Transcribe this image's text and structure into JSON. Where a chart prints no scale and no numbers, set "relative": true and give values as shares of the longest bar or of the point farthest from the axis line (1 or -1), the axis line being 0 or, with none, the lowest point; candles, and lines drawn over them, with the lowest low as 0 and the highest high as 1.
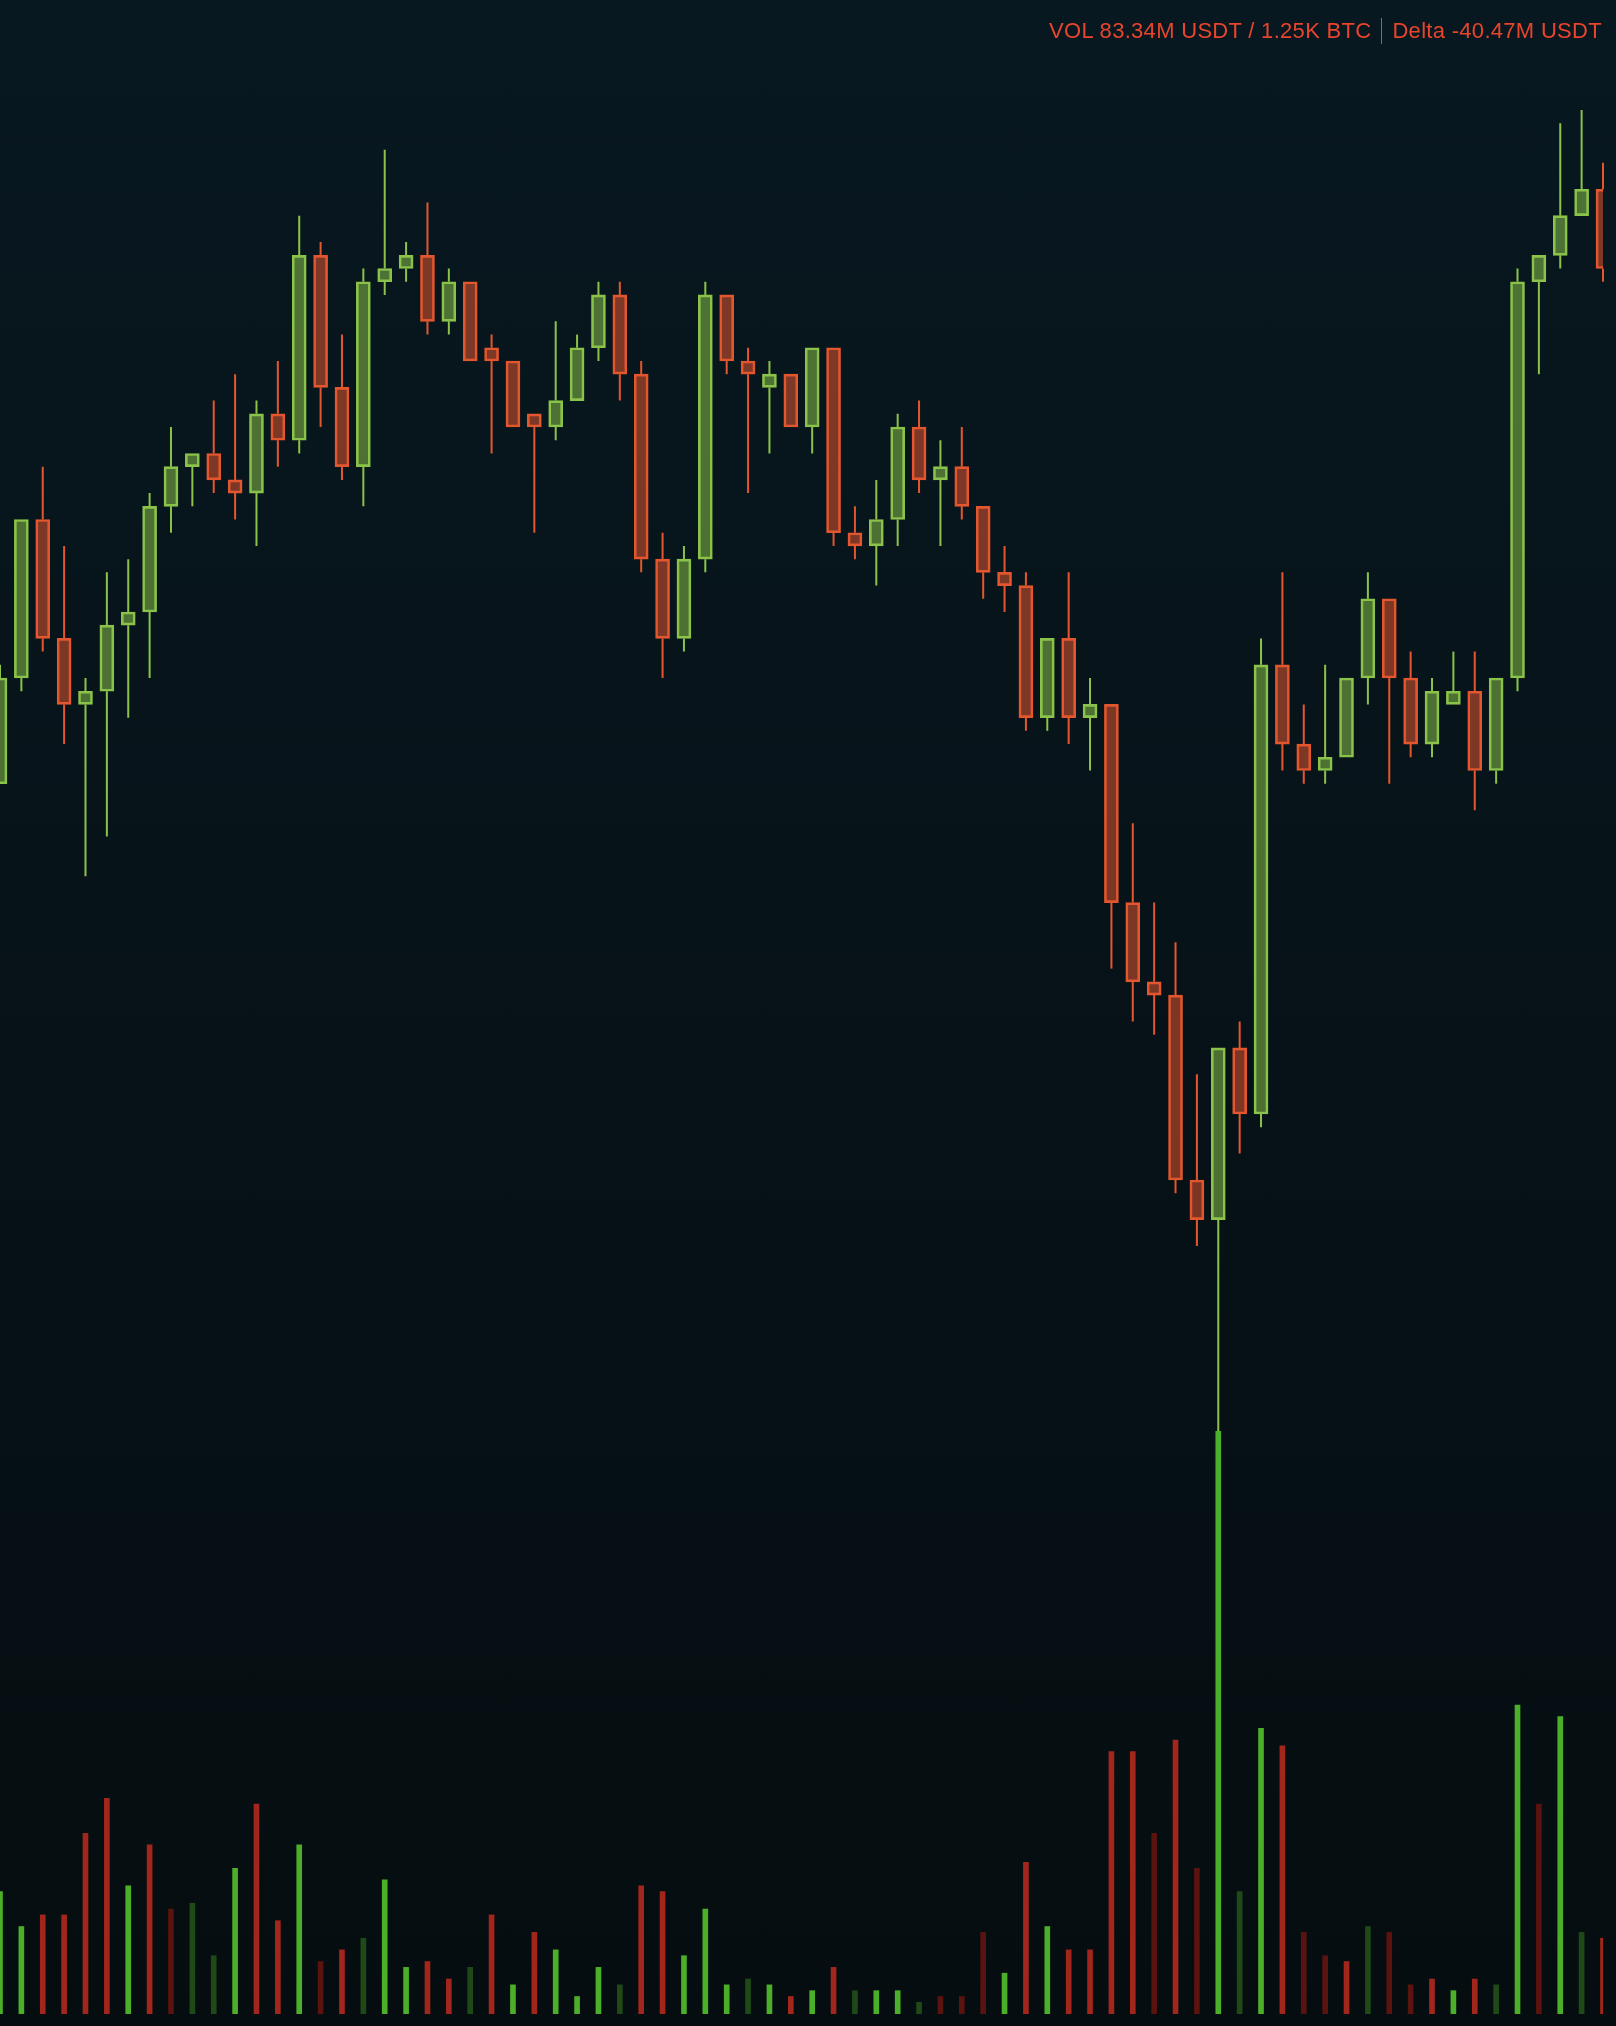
{
  "chart_data": [
    {
      "type": "candlestick",
      "relative": true,
      "tick_labels": false,
      "annotations": [
        "VOL 83.34M USDT / 1.25K BTC",
        "Delta -40.47M USDT"
      ],
      "categories": [
        null,
        null,
        null,
        null,
        null,
        null,
        null,
        null,
        null,
        null,
        null,
        null,
        null,
        null,
        null,
        null,
        null,
        null,
        null,
        null,
        null,
        null,
        null,
        null,
        null,
        null,
        null,
        null,
        null,
        null,
        null,
        null,
        null,
        null,
        null,
        null,
        null,
        null,
        null,
        null,
        null,
        null,
        null,
        null,
        null,
        null,
        null,
        null,
        null,
        null,
        null,
        null,
        null,
        null,
        null,
        null,
        null,
        null,
        null,
        null,
        null,
        null,
        null,
        null,
        null,
        null,
        null,
        null,
        null,
        null,
        null,
        null,
        null,
        null,
        null,
        null
      ],
      "ohlc": [
        [
          0.49,
          0.58,
          0.49,
          0.57
        ],
        [
          0.57,
          0.69,
          0.56,
          0.69
        ],
        [
          0.69,
          0.73,
          0.59,
          0.6
        ],
        [
          0.6,
          0.67,
          0.52,
          0.55
        ],
        [
          0.55,
          0.57,
          0.42,
          0.56
        ],
        [
          0.56,
          0.65,
          0.45,
          0.61
        ],
        [
          0.61,
          0.66,
          0.54,
          0.62
        ],
        [
          0.62,
          0.71,
          0.57,
          0.7
        ],
        [
          0.7,
          0.76,
          0.68,
          0.73
        ],
        [
          0.73,
          0.74,
          0.7,
          0.74
        ],
        [
          0.74,
          0.78,
          0.71,
          0.72
        ],
        [
          0.72,
          0.8,
          0.69,
          0.71
        ],
        [
          0.71,
          0.78,
          0.67,
          0.77
        ],
        [
          0.77,
          0.81,
          0.73,
          0.75
        ],
        [
          0.75,
          0.92,
          0.74,
          0.89
        ],
        [
          0.89,
          0.9,
          0.76,
          0.79
        ],
        [
          0.79,
          0.83,
          0.72,
          0.73
        ],
        [
          0.73,
          0.88,
          0.7,
          0.87
        ],
        [
          0.87,
          0.97,
          0.86,
          0.88
        ],
        [
          0.88,
          0.9,
          0.87,
          0.89
        ],
        [
          0.89,
          0.93,
          0.83,
          0.84
        ],
        [
          0.84,
          0.88,
          0.83,
          0.87
        ],
        [
          0.87,
          0.87,
          0.81,
          0.81
        ],
        [
          0.82,
          0.83,
          0.74,
          0.81
        ],
        [
          0.81,
          0.81,
          0.76,
          0.76
        ],
        [
          0.77,
          0.77,
          0.68,
          0.76
        ],
        [
          0.76,
          0.84,
          0.75,
          0.78
        ],
        [
          0.78,
          0.83,
          0.78,
          0.82
        ],
        [
          0.82,
          0.87,
          0.81,
          0.86
        ],
        [
          0.86,
          0.87,
          0.78,
          0.8
        ],
        [
          0.8,
          0.81,
          0.65,
          0.66
        ],
        [
          0.66,
          0.68,
          0.57,
          0.6
        ],
        [
          0.6,
          0.67,
          0.59,
          0.66
        ],
        [
          0.66,
          0.87,
          0.65,
          0.86
        ],
        [
          0.86,
          0.86,
          0.8,
          0.81
        ],
        [
          0.81,
          0.82,
          0.71,
          0.8
        ],
        [
          0.79,
          0.81,
          0.74,
          0.8
        ],
        [
          0.8,
          0.8,
          0.76,
          0.76
        ],
        [
          0.76,
          0.82,
          0.74,
          0.82
        ],
        [
          0.82,
          0.82,
          0.67,
          0.68
        ],
        [
          0.68,
          0.7,
          0.66,
          0.67
        ],
        [
          0.67,
          0.72,
          0.64,
          0.69
        ],
        [
          0.69,
          0.77,
          0.67,
          0.76
        ],
        [
          0.76,
          0.78,
          0.71,
          0.72
        ],
        [
          0.72,
          0.75,
          0.67,
          0.73
        ],
        [
          0.73,
          0.76,
          0.69,
          0.7
        ],
        [
          0.7,
          0.7,
          0.63,
          0.65
        ],
        [
          0.65,
          0.67,
          0.62,
          0.64
        ],
        [
          0.64,
          0.65,
          0.53,
          0.54
        ],
        [
          0.54,
          0.6,
          0.53,
          0.6
        ],
        [
          0.6,
          0.65,
          0.52,
          0.54
        ],
        [
          0.54,
          0.57,
          0.5,
          0.55
        ],
        [
          0.55,
          0.55,
          0.35,
          0.4
        ],
        [
          0.4,
          0.46,
          0.31,
          0.34
        ],
        [
          0.34,
          0.4,
          0.3,
          0.33
        ],
        [
          0.33,
          0.37,
          0.18,
          0.19
        ],
        [
          0.19,
          0.27,
          0.14,
          0.16
        ],
        [
          0.16,
          0.29,
          0,
          0.29
        ],
        [
          0.29,
          0.31,
          0.21,
          0.24
        ],
        [
          0.24,
          0.6,
          0.23,
          0.58
        ],
        [
          0.58,
          0.65,
          0.5,
          0.52
        ],
        [
          0.52,
          0.55,
          0.49,
          0.5
        ],
        [
          0.5,
          0.58,
          0.49,
          0.51
        ],
        [
          0.51,
          0.57,
          0.51,
          0.57
        ],
        [
          0.57,
          0.65,
          0.55,
          0.63
        ],
        [
          0.63,
          0.63,
          0.49,
          0.57
        ],
        [
          0.57,
          0.59,
          0.51,
          0.52
        ],
        [
          0.52,
          0.57,
          0.51,
          0.56
        ],
        [
          0.55,
          0.59,
          0.55,
          0.56
        ],
        [
          0.56,
          0.59,
          0.47,
          0.5
        ],
        [
          0.5,
          0.57,
          0.49,
          0.57
        ],
        [
          0.57,
          0.88,
          0.56,
          0.87
        ],
        [
          0.87,
          0.89,
          0.8,
          0.89
        ],
        [
          0.89,
          0.99,
          0.88,
          0.92
        ],
        [
          0.92,
          1,
          0.92,
          0.94
        ],
        [
          0.94,
          0.96,
          0.87,
          0.88
        ]
      ],
      "colors": [
        "#8bc34a",
        "#8bc34a",
        "#e4572e",
        "#e4572e",
        "#8bc34a",
        "#8bc34a",
        "#8bc34a",
        "#8bc34a",
        "#8bc34a",
        "#8bc34a",
        "#e4572e",
        "#e4572e",
        "#8bc34a",
        "#e4572e",
        "#8bc34a",
        "#e4572e",
        "#e4572e",
        "#8bc34a",
        "#8bc34a",
        "#8bc34a",
        "#e4572e",
        "#8bc34a",
        "#e4572e",
        "#e4572e",
        "#e4572e",
        "#e4572e",
        "#8bc34a",
        "#8bc34a",
        "#8bc34a",
        "#e4572e",
        "#e4572e",
        "#e4572e",
        "#8bc34a",
        "#8bc34a",
        "#e4572e",
        "#e4572e",
        "#8bc34a",
        "#e4572e",
        "#8bc34a",
        "#e4572e",
        "#e4572e",
        "#8bc34a",
        "#8bc34a",
        "#e4572e",
        "#8bc34a",
        "#e4572e",
        "#e4572e",
        "#e4572e",
        "#e4572e",
        "#8bc34a",
        "#e4572e",
        "#8bc34a",
        "#e4572e",
        "#e4572e",
        "#e4572e",
        "#e4572e",
        "#e4572e",
        "#8bc34a",
        "#e4572e",
        "#8bc34a",
        "#e4572e",
        "#e4572e",
        "#8bc34a",
        "#8bc34a",
        "#8bc34a",
        "#e4572e",
        "#e4572e",
        "#8bc34a",
        "#8bc34a",
        "#e4572e",
        "#8bc34a",
        "#8bc34a",
        "#8bc34a",
        "#8bc34a",
        "#8bc34a",
        "#e4572e"
      ]
    },
    {
      "type": "bar",
      "relative": true,
      "tick_labels": false,
      "categories": [
        null,
        null,
        null,
        null,
        null,
        null,
        null,
        null,
        null,
        null,
        null,
        null,
        null,
        null,
        null,
        null,
        null,
        null,
        null,
        null,
        null,
        null,
        null,
        null,
        null,
        null,
        null,
        null,
        null,
        null,
        null,
        null,
        null,
        null,
        null,
        null,
        null,
        null,
        null,
        null,
        null,
        null,
        null,
        null,
        null,
        null,
        null,
        null,
        null,
        null,
        null,
        null,
        null,
        null,
        null,
        null,
        null,
        null,
        null,
        null,
        null,
        null,
        null,
        null,
        null,
        null,
        null,
        null,
        null,
        null,
        null,
        null,
        null,
        null,
        null,
        null
      ],
      "values": [
        0.21,
        0.15,
        0.17,
        0.17,
        0.31,
        0.37,
        0.22,
        0.29,
        0.18,
        0.19,
        0.1,
        0.25,
        0.36,
        0.16,
        0.29,
        0.09,
        0.11,
        0.13,
        0.23,
        0.08,
        0.09,
        0.06,
        0.08,
        0.17,
        0.05,
        0.14,
        0.11,
        0.03,
        0.08,
        0.05,
        0.22,
        0.21,
        0.1,
        0.18,
        0.05,
        0.06,
        0.05,
        0.03,
        0.04,
        0.08,
        0.04,
        0.04,
        0.04,
        0.02,
        0.03,
        0.03,
        0.14,
        0.07,
        0.26,
        0.15,
        0.11,
        0.11,
        0.45,
        0.45,
        0.31,
        0.47,
        0.25,
        1,
        0.21,
        0.49,
        0.46,
        0.14,
        0.1,
        0.09,
        0.15,
        0.14,
        0.05,
        0.06,
        0.04,
        0.06,
        0.05,
        0.53,
        0.36,
        0.51,
        0.14,
        0.13
      ],
      "colors": [
        "#4caf2a",
        "#4caf2a",
        "#a3261c",
        "#a3261c",
        "#a3261c",
        "#a3261c",
        "#4caf2a",
        "#a3261c",
        "#5a130e",
        "#1f4a17",
        "#1f4a17",
        "#4caf2a",
        "#a3261c",
        "#a3261c",
        "#4caf2a",
        "#5a130e",
        "#a3261c",
        "#1f4a17",
        "#4caf2a",
        "#4caf2a",
        "#a3261c",
        "#a3261c",
        "#1f4a17",
        "#a3261c",
        "#4caf2a",
        "#a3261c",
        "#4caf2a",
        "#4caf2a",
        "#4caf2a",
        "#1f4a17",
        "#a3261c",
        "#a3261c",
        "#4caf2a",
        "#4caf2a",
        "#4caf2a",
        "#1f4a17",
        "#4caf2a",
        "#a3261c",
        "#4caf2a",
        "#a3261c",
        "#1f4a17",
        "#4caf2a",
        "#4caf2a",
        "#1f4a17",
        "#5a130e",
        "#5a130e",
        "#5a130e",
        "#4caf2a",
        "#a3261c",
        "#4caf2a",
        "#a3261c",
        "#a3261c",
        "#a3261c",
        "#a3261c",
        "#5a130e",
        "#a3261c",
        "#5a130e",
        "#4caf2a",
        "#1f4a17",
        "#4caf2a",
        "#a3261c",
        "#5a130e",
        "#5a130e",
        "#a3261c",
        "#1f4a17",
        "#5a130e",
        "#5a130e",
        "#a3261c",
        "#4caf2a",
        "#a3261c",
        "#1f4a17",
        "#4caf2a",
        "#5a130e",
        "#4caf2a",
        "#1f4a17",
        "#a3261c"
      ]
    }
  ]
}
